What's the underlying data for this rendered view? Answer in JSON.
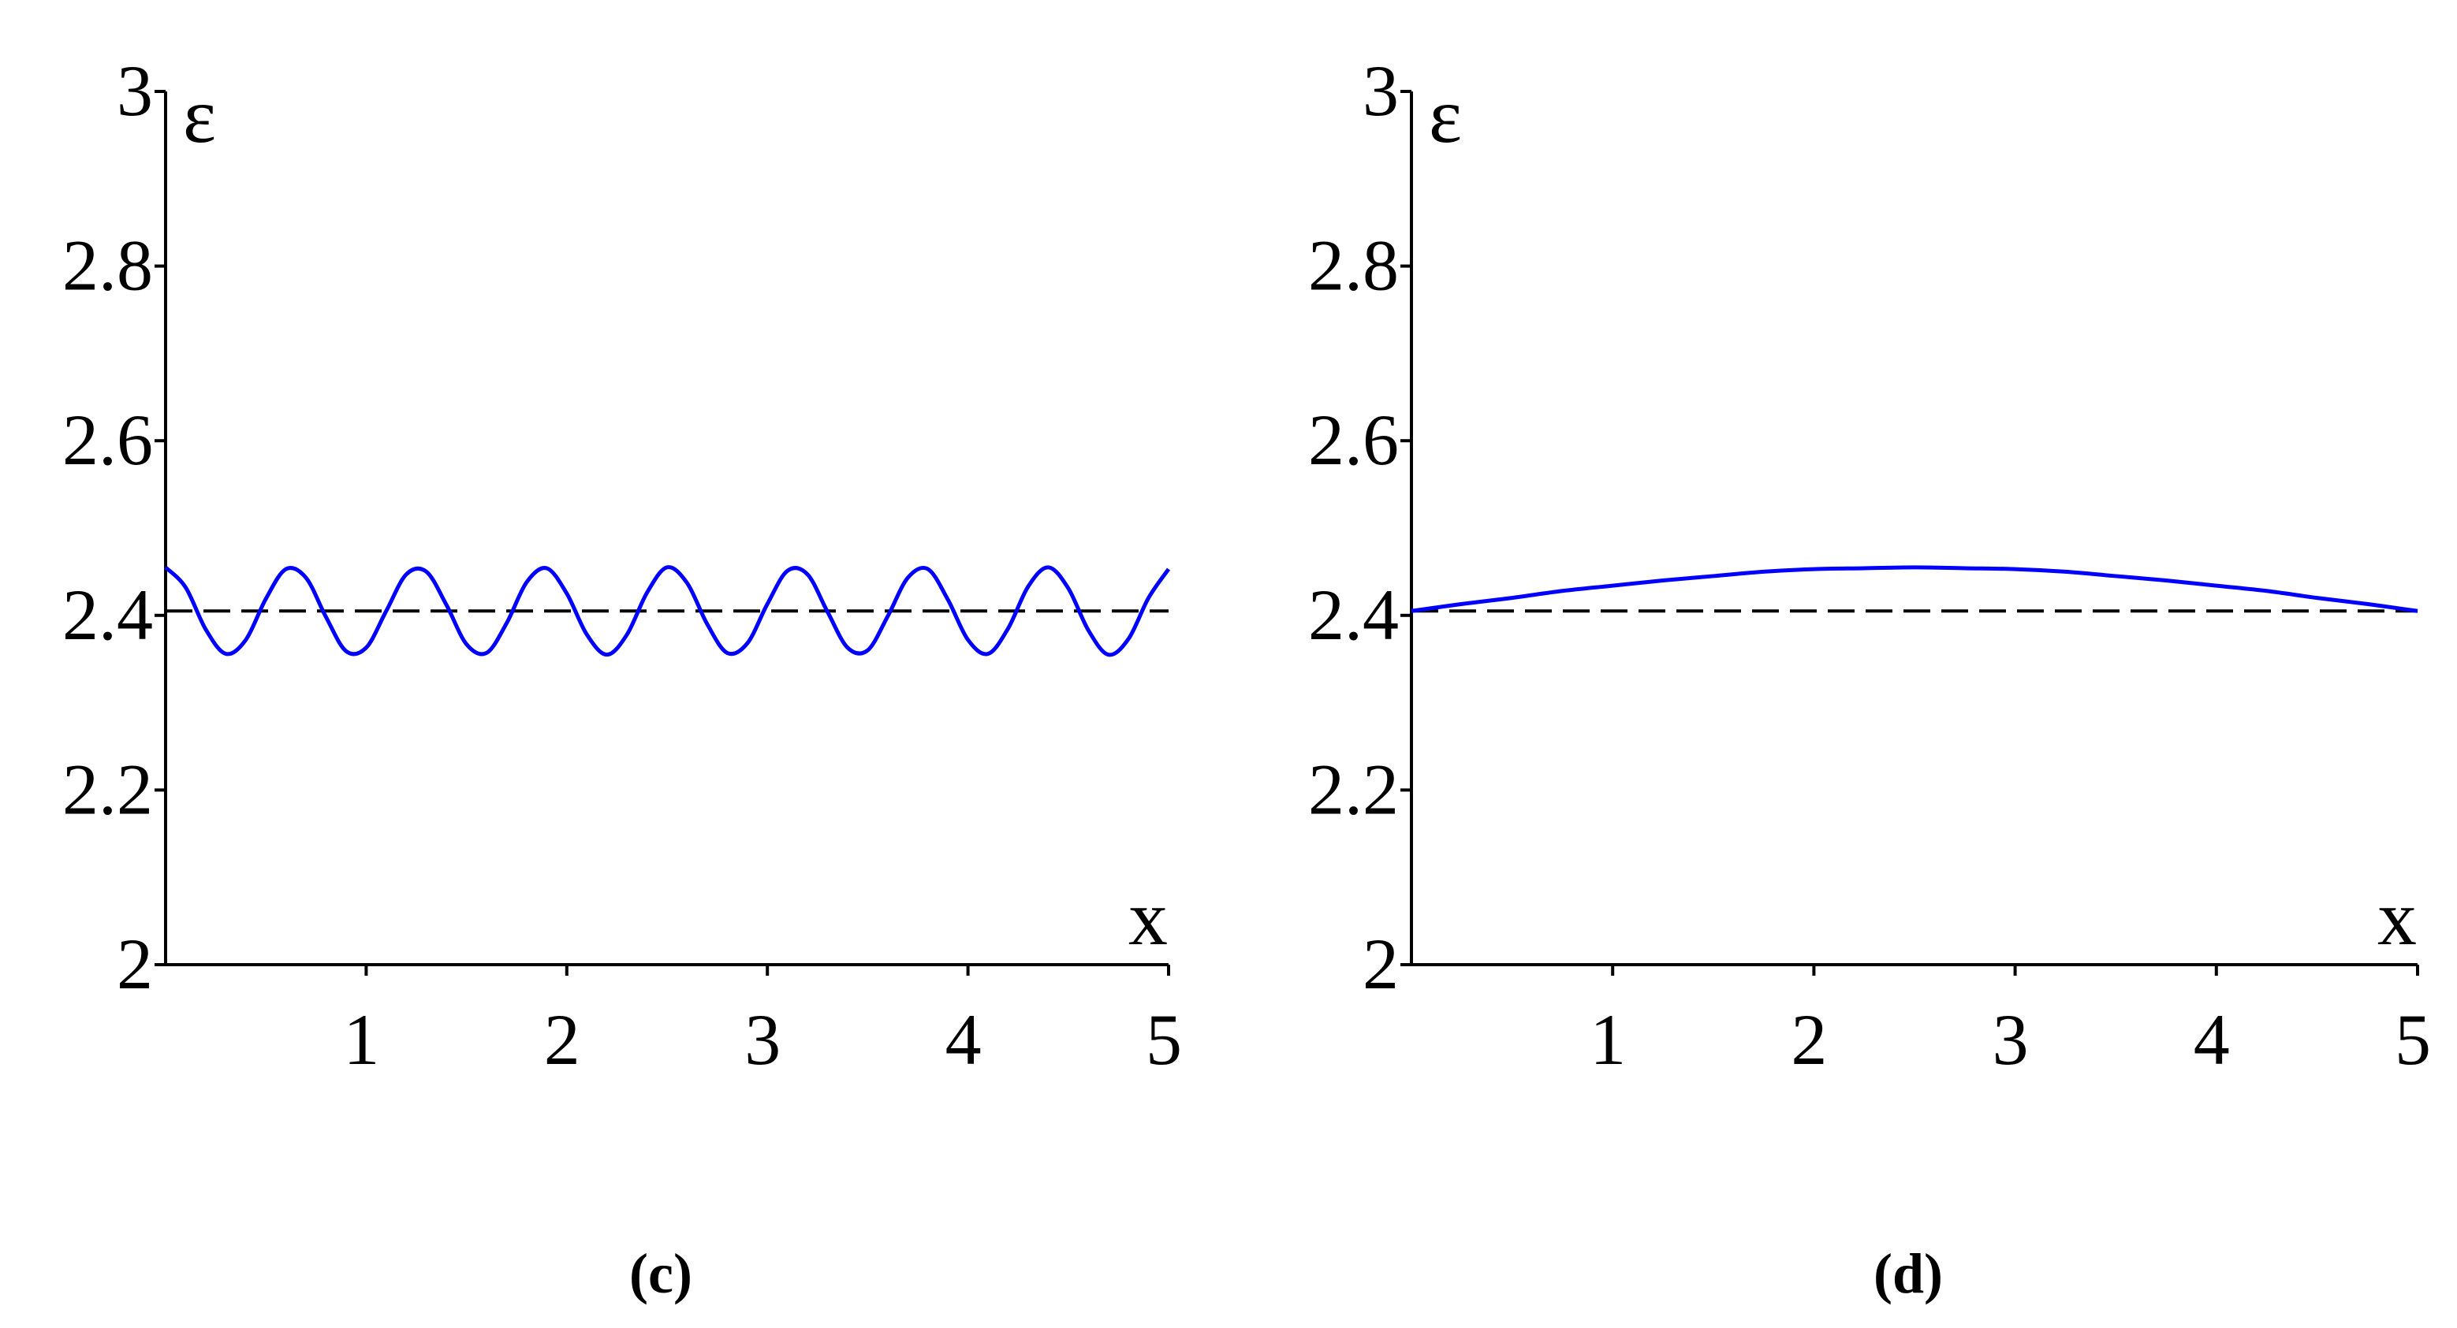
{
  "chart_data": [
    {
      "type": "line",
      "caption": "(c)",
      "xlabel": "x",
      "ylabel": "ε",
      "xlim": [
        0,
        5
      ],
      "ylim": [
        2,
        3
      ],
      "xticks": [
        1,
        2,
        3,
        4,
        5
      ],
      "yticks": [
        2,
        2.2,
        2.4,
        2.6,
        2.8,
        3
      ],
      "color": "#0000ff",
      "x": [
        0,
        0.1,
        0.2,
        0.3,
        0.4,
        0.5,
        0.6,
        0.7,
        0.8,
        0.9,
        1,
        1.1,
        1.2,
        1.3,
        1.4,
        1.5,
        1.6,
        1.7,
        1.8,
        1.9,
        2,
        2.1,
        2.2,
        2.3,
        2.4,
        2.5,
        2.6,
        2.7,
        2.8,
        2.9,
        3,
        3.1,
        3.2,
        3.3,
        3.4,
        3.5,
        3.6,
        3.7,
        3.8,
        3.9,
        4,
        4.1,
        4.2,
        4.3,
        4.4,
        4.5,
        4.6,
        4.7,
        4.8,
        4.9,
        5
      ],
      "values": [
        2.455,
        2.432,
        2.384,
        2.356,
        2.372,
        2.419,
        2.453,
        2.443,
        2.398,
        2.359,
        2.363,
        2.405,
        2.447,
        2.45,
        2.412,
        2.367,
        2.357,
        2.391,
        2.438,
        2.454,
        2.425,
        2.378,
        2.355,
        2.378,
        2.426,
        2.455,
        2.437,
        2.39,
        2.357,
        2.368,
        2.413,
        2.451,
        2.447,
        2.404,
        2.363,
        2.36,
        2.399,
        2.443,
        2.453,
        2.418,
        2.372,
        2.356,
        2.385,
        2.433,
        2.455,
        2.431,
        2.383,
        2.355,
        2.373,
        2.42,
        2.453
      ],
      "reference_line": {
        "value": 2.405,
        "color": "#000000",
        "dashed": true
      }
    },
    {
      "type": "line",
      "caption": "(d)",
      "xlabel": "x",
      "ylabel": "ε",
      "xlim": [
        0,
        5
      ],
      "ylim": [
        2,
        3
      ],
      "xticks": [
        1,
        2,
        3,
        4,
        5
      ],
      "yticks": [
        2,
        2.2,
        2.4,
        2.6,
        2.8,
        3
      ],
      "color": "#0000ff",
      "x": [
        0,
        0.25,
        0.5,
        0.75,
        1,
        1.25,
        1.5,
        1.75,
        2,
        2.25,
        2.5,
        2.75,
        3,
        3.25,
        3.5,
        3.75,
        4,
        4.25,
        4.5,
        4.75,
        5
      ],
      "values": [
        2.405,
        2.413,
        2.42,
        2.428,
        2.434,
        2.44,
        2.445,
        2.45,
        2.453,
        2.454,
        2.455,
        2.454,
        2.453,
        2.45,
        2.445,
        2.44,
        2.434,
        2.428,
        2.42,
        2.413,
        2.405
      ],
      "reference_line": {
        "value": 2.405,
        "color": "#000000",
        "dashed": true
      }
    }
  ]
}
